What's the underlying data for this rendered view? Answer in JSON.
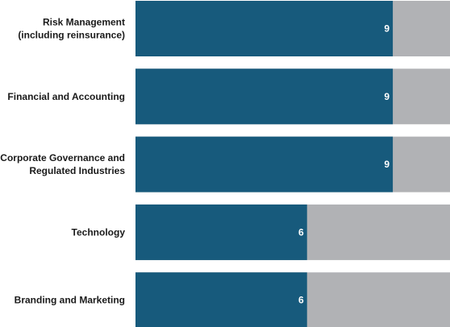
{
  "chart_data": {
    "type": "bar",
    "orientation": "horizontal",
    "stacked": true,
    "categories": [
      [
        "Risk Management",
        "(including reinsurance)"
      ],
      [
        "Financial and Accounting"
      ],
      [
        "Corporate Governance and",
        "Regulated Industries"
      ],
      [
        "Technology"
      ],
      [
        "Branding and Marketing"
      ]
    ],
    "values": [
      9,
      9,
      9,
      6,
      6
    ],
    "total": 11,
    "xlim": [
      0,
      11
    ],
    "colors": {
      "value": "#175a7c",
      "remainder": "#b1b2b5"
    },
    "grid": false,
    "legend": false
  }
}
